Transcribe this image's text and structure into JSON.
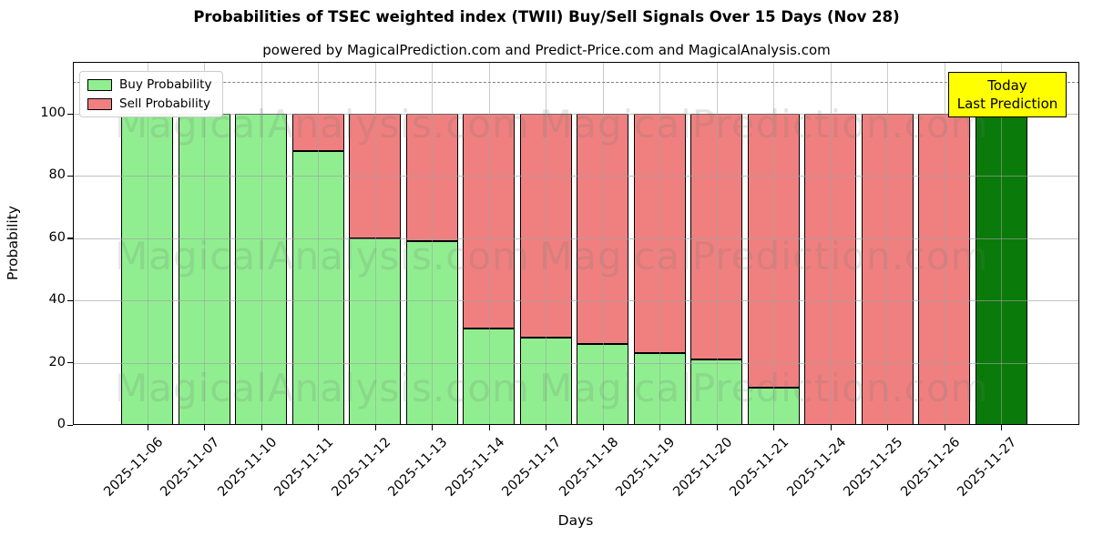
{
  "title": "Probabilities of TSEC weighted index (TWII) Buy/Sell Signals Over 15 Days (Nov 28)",
  "subtitle": "powered by MagicalPrediction.com and Predict-Price.com and MagicalAnalysis.com",
  "legend": [
    {
      "label": "Buy Probability",
      "color": "#90ee90"
    },
    {
      "label": "Sell Probability",
      "color": "#f08080"
    }
  ],
  "annotation": {
    "lines": [
      "Today",
      "Last Prediction"
    ],
    "bg_color": "#ffff00"
  },
  "watermark": {
    "left_text": "MagicalAnalysis.com",
    "right_text": "MagicalPrediction.com"
  },
  "chart_data": {
    "type": "bar",
    "stacked": true,
    "title": "Probabilities of TSEC weighted index (TWII) Buy/Sell Signals Over 15 Days (Nov 28)",
    "xlabel": "Days",
    "ylabel": "Probability",
    "yticks": [
      0,
      20,
      40,
      60,
      80,
      100
    ],
    "ylim": [
      0,
      116.7
    ],
    "grid": true,
    "legend_position": "upper left",
    "dashed_line_y": 110,
    "categories": [
      "2025-11-06",
      "2025-11-07",
      "2025-11-10",
      "2025-11-11",
      "2025-11-12",
      "2025-11-13",
      "2025-11-14",
      "2025-11-17",
      "2025-11-18",
      "2025-11-19",
      "2025-11-20",
      "2025-11-21",
      "2025-11-24",
      "2025-11-25",
      "2025-11-26",
      "2025-11-27"
    ],
    "series": [
      {
        "name": "Buy Probability",
        "color": "#90ee90",
        "values": [
          100,
          100,
          100,
          88,
          60,
          59,
          31,
          28,
          26,
          23,
          21,
          12,
          0,
          0,
          0,
          null
        ]
      },
      {
        "name": "Sell Probability",
        "color": "#f08080",
        "values": [
          0,
          0,
          0,
          12,
          40,
          41,
          69,
          72,
          74,
          77,
          79,
          88,
          100,
          100,
          100,
          null
        ]
      }
    ],
    "today_bar": {
      "index": 15,
      "category": "2025-11-27",
      "value": 100,
      "color": "#0a7a0a",
      "label": "Today Last Prediction"
    }
  }
}
